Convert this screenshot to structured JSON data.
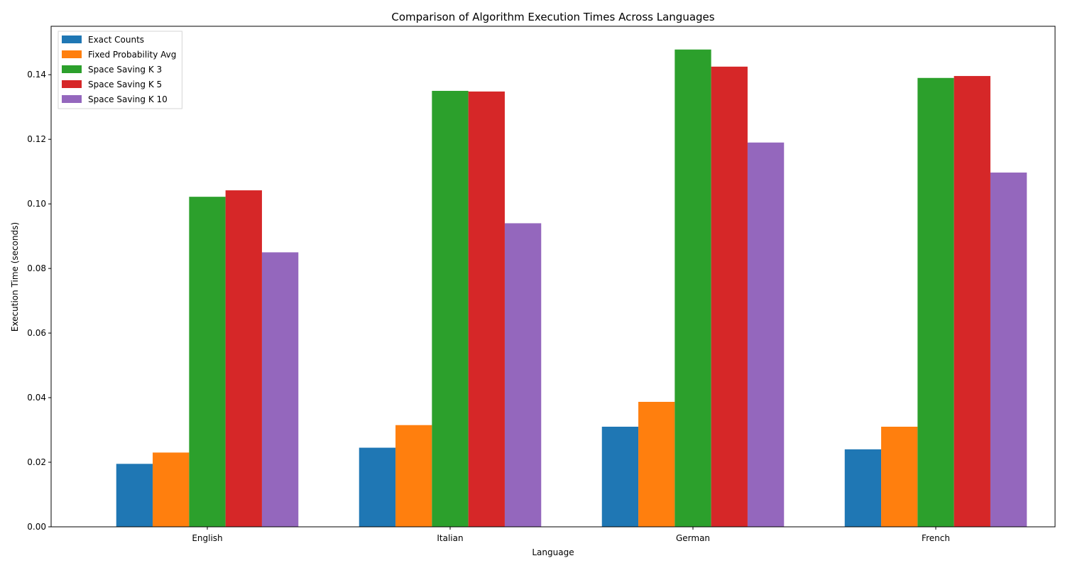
{
  "chart_data": {
    "type": "bar",
    "title": "Comparison of Algorithm Execution Times Across Languages",
    "xlabel": "Language",
    "ylabel": "Execution Time (seconds)",
    "ylim": [
      0,
      0.155
    ],
    "yticks": [
      "0.00",
      "0.02",
      "0.04",
      "0.06",
      "0.08",
      "0.10",
      "0.12",
      "0.14"
    ],
    "categories": [
      "English",
      "Italian",
      "German",
      "French"
    ],
    "legend_position": "top-left",
    "grid": false,
    "series": [
      {
        "name": "Exact Counts",
        "color": "#1f77b4",
        "values": [
          0.0195,
          0.0245,
          0.031,
          0.024
        ]
      },
      {
        "name": "Fixed Probability Avg",
        "color": "#ff7f0e",
        "values": [
          0.023,
          0.0315,
          0.0387,
          0.031
        ]
      },
      {
        "name": "Space Saving K 3",
        "color": "#2ca02c",
        "values": [
          0.1022,
          0.135,
          0.1478,
          0.139
        ]
      },
      {
        "name": "Space Saving K 5",
        "color": "#d62728",
        "values": [
          0.1042,
          0.1348,
          0.1425,
          0.1396
        ]
      },
      {
        "name": "Space Saving K 10",
        "color": "#9467bd",
        "values": [
          0.085,
          0.094,
          0.119,
          0.1097
        ]
      }
    ]
  }
}
